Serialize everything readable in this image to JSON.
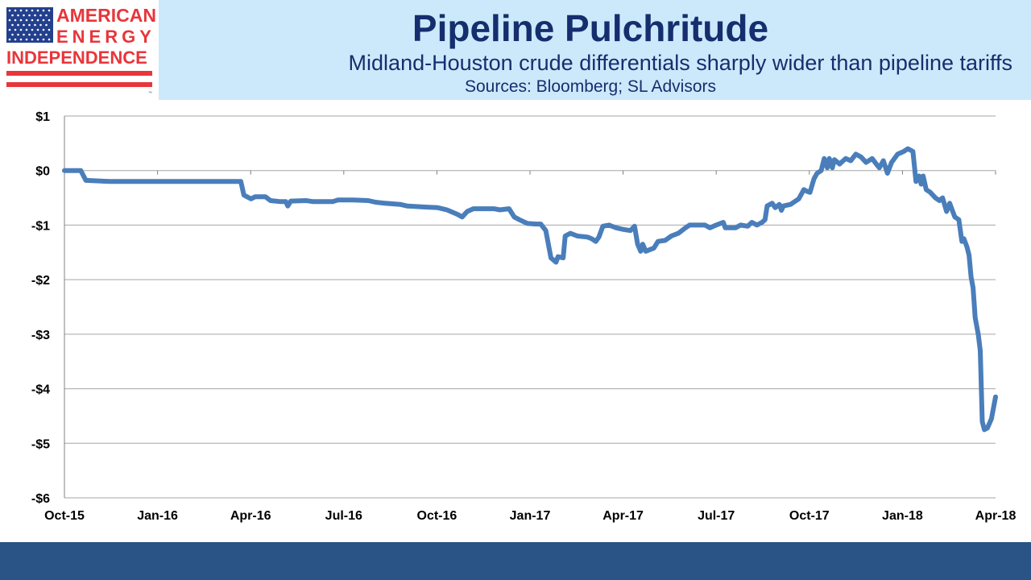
{
  "logo": {
    "line1": "AMERICAN",
    "line2": "ENERGY",
    "line3": "INDEPENDENCE",
    "icon": "us-flag-icon",
    "colors": {
      "red": "#e8363b",
      "blue": "#23408e"
    }
  },
  "header": {
    "title": "Pipeline Pulchritude",
    "subtitle": "Midland-Houston crude differentials sharply wider than pipeline tariffs",
    "sources": "Sources: Bloomberg; SL Advisors",
    "background": "#cce9fb",
    "text_color": "#152e6e"
  },
  "footer": {
    "color": "#2a5386"
  },
  "chart_data": {
    "type": "line",
    "title": "",
    "xlabel": "",
    "ylabel": "",
    "ylim": [
      -6,
      1
    ],
    "y_ticks": [
      1,
      0,
      -1,
      -2,
      -3,
      -4,
      -5,
      -6
    ],
    "y_tick_labels": [
      "$1",
      "$0",
      "-$1",
      "-$2",
      "-$3",
      "-$4",
      "-$5",
      "-$6"
    ],
    "x_tick_labels": [
      "Oct-15",
      "Jan-16",
      "Apr-16",
      "Jul-16",
      "Oct-16",
      "Jan-17",
      "Apr-17",
      "Jul-17",
      "Oct-17",
      "Jan-18",
      "Apr-18"
    ],
    "x_range": [
      "2015-10-01",
      "2018-04-01"
    ],
    "grid": true,
    "line_color": "#4a7ebb",
    "series": [
      {
        "name": "",
        "points": [
          [
            "2015-10-01",
            0.0
          ],
          [
            "2015-10-17",
            0.0
          ],
          [
            "2015-10-22",
            -0.18
          ],
          [
            "2015-11-15",
            -0.2
          ],
          [
            "2016-01-01",
            -0.2
          ],
          [
            "2016-02-15",
            -0.2
          ],
          [
            "2016-03-15",
            -0.2
          ],
          [
            "2016-03-22",
            -0.2
          ],
          [
            "2016-03-25",
            -0.45
          ],
          [
            "2016-04-01",
            -0.52
          ],
          [
            "2016-04-05",
            -0.48
          ],
          [
            "2016-04-15",
            -0.48
          ],
          [
            "2016-04-20",
            -0.55
          ],
          [
            "2016-04-30",
            -0.57
          ],
          [
            "2016-05-05",
            -0.57
          ],
          [
            "2016-05-07",
            -0.65
          ],
          [
            "2016-05-10",
            -0.56
          ],
          [
            "2016-05-25",
            -0.55
          ],
          [
            "2016-06-01",
            -0.57
          ],
          [
            "2016-06-20",
            -0.57
          ],
          [
            "2016-06-25",
            -0.54
          ],
          [
            "2016-07-10",
            -0.54
          ],
          [
            "2016-07-25",
            -0.55
          ],
          [
            "2016-08-01",
            -0.58
          ],
          [
            "2016-08-10",
            -0.6
          ],
          [
            "2016-08-25",
            -0.62
          ],
          [
            "2016-09-01",
            -0.65
          ],
          [
            "2016-09-20",
            -0.67
          ],
          [
            "2016-10-01",
            -0.68
          ],
          [
            "2016-10-10",
            -0.72
          ],
          [
            "2016-10-20",
            -0.8
          ],
          [
            "2016-10-25",
            -0.85
          ],
          [
            "2016-10-30",
            -0.75
          ],
          [
            "2016-11-05",
            -0.7
          ],
          [
            "2016-11-25",
            -0.7
          ],
          [
            "2016-12-01",
            -0.72
          ],
          [
            "2016-12-10",
            -0.7
          ],
          [
            "2016-12-15",
            -0.85
          ],
          [
            "2016-12-20",
            -0.9
          ],
          [
            "2016-12-28",
            -0.97
          ],
          [
            "2017-01-05",
            -0.98
          ],
          [
            "2017-01-10",
            -0.98
          ],
          [
            "2017-01-15",
            -1.1
          ],
          [
            "2017-01-20",
            -1.6
          ],
          [
            "2017-01-25",
            -1.68
          ],
          [
            "2017-01-27",
            -1.58
          ],
          [
            "2017-02-01",
            -1.6
          ],
          [
            "2017-02-03",
            -1.2
          ],
          [
            "2017-02-08",
            -1.15
          ],
          [
            "2017-02-15",
            -1.2
          ],
          [
            "2017-02-25",
            -1.22
          ],
          [
            "2017-03-01",
            -1.25
          ],
          [
            "2017-03-05",
            -1.3
          ],
          [
            "2017-03-08",
            -1.22
          ],
          [
            "2017-03-12",
            -1.02
          ],
          [
            "2017-03-18",
            -1.0
          ],
          [
            "2017-03-25",
            -1.05
          ],
          [
            "2017-04-01",
            -1.08
          ],
          [
            "2017-04-08",
            -1.1
          ],
          [
            "2017-04-12",
            -1.02
          ],
          [
            "2017-04-15",
            -1.35
          ],
          [
            "2017-04-18",
            -1.48
          ],
          [
            "2017-04-20",
            -1.35
          ],
          [
            "2017-04-23",
            -1.48
          ],
          [
            "2017-05-01",
            -1.42
          ],
          [
            "2017-05-05",
            -1.3
          ],
          [
            "2017-05-12",
            -1.28
          ],
          [
            "2017-05-18",
            -1.2
          ],
          [
            "2017-05-25",
            -1.15
          ],
          [
            "2017-06-01",
            -1.05
          ],
          [
            "2017-06-05",
            -1.0
          ],
          [
            "2017-06-20",
            -1.0
          ],
          [
            "2017-06-25",
            -1.05
          ],
          [
            "2017-07-01",
            -1.0
          ],
          [
            "2017-07-08",
            -0.95
          ],
          [
            "2017-07-10",
            -1.05
          ],
          [
            "2017-07-20",
            -1.05
          ],
          [
            "2017-07-25",
            -1.0
          ],
          [
            "2017-08-01",
            -1.02
          ],
          [
            "2017-08-05",
            -0.95
          ],
          [
            "2017-08-10",
            -1.0
          ],
          [
            "2017-08-15",
            -0.95
          ],
          [
            "2017-08-18",
            -0.9
          ],
          [
            "2017-08-20",
            -0.65
          ],
          [
            "2017-08-25",
            -0.6
          ],
          [
            "2017-08-28",
            -0.68
          ],
          [
            "2017-09-01",
            -0.62
          ],
          [
            "2017-09-03",
            -0.73
          ],
          [
            "2017-09-05",
            -0.65
          ],
          [
            "2017-09-12",
            -0.62
          ],
          [
            "2017-09-20",
            -0.52
          ],
          [
            "2017-09-25",
            -0.35
          ],
          [
            "2017-09-28",
            -0.38
          ],
          [
            "2017-10-01",
            -0.4
          ],
          [
            "2017-10-05",
            -0.15
          ],
          [
            "2017-10-08",
            -0.05
          ],
          [
            "2017-10-12",
            0.0
          ],
          [
            "2017-10-15",
            0.22
          ],
          [
            "2017-10-18",
            0.05
          ],
          [
            "2017-10-20",
            0.22
          ],
          [
            "2017-10-23",
            0.05
          ],
          [
            "2017-10-25",
            0.2
          ],
          [
            "2017-10-30",
            0.12
          ],
          [
            "2017-11-05",
            0.22
          ],
          [
            "2017-11-10",
            0.18
          ],
          [
            "2017-11-15",
            0.3
          ],
          [
            "2017-11-20",
            0.25
          ],
          [
            "2017-11-25",
            0.15
          ],
          [
            "2017-12-01",
            0.22
          ],
          [
            "2017-12-05",
            0.12
          ],
          [
            "2017-12-08",
            0.05
          ],
          [
            "2017-12-12",
            0.18
          ],
          [
            "2017-12-16",
            -0.05
          ],
          [
            "2017-12-20",
            0.15
          ],
          [
            "2017-12-26",
            0.3
          ],
          [
            "2018-01-01",
            0.35
          ],
          [
            "2018-01-05",
            0.4
          ],
          [
            "2018-01-10",
            0.35
          ],
          [
            "2018-01-13",
            -0.2
          ],
          [
            "2018-01-16",
            -0.1
          ],
          [
            "2018-01-18",
            -0.25
          ],
          [
            "2018-01-20",
            -0.1
          ],
          [
            "2018-01-23",
            -0.35
          ],
          [
            "2018-01-27",
            -0.4
          ],
          [
            "2018-02-01",
            -0.5
          ],
          [
            "2018-02-05",
            -0.55
          ],
          [
            "2018-02-08",
            -0.5
          ],
          [
            "2018-02-12",
            -0.75
          ],
          [
            "2018-02-15",
            -0.6
          ],
          [
            "2018-02-20",
            -0.85
          ],
          [
            "2018-02-24",
            -0.9
          ],
          [
            "2018-02-27",
            -1.3
          ],
          [
            "2018-03-01",
            -1.25
          ],
          [
            "2018-03-04",
            -1.4
          ],
          [
            "2018-03-06",
            -1.55
          ],
          [
            "2018-03-08",
            -1.95
          ],
          [
            "2018-03-10",
            -2.15
          ],
          [
            "2018-03-12",
            -2.7
          ],
          [
            "2018-03-15",
            -3.0
          ],
          [
            "2018-03-17",
            -3.3
          ],
          [
            "2018-03-19",
            -4.6
          ],
          [
            "2018-03-21",
            -4.75
          ],
          [
            "2018-03-24",
            -4.72
          ],
          [
            "2018-03-28",
            -4.55
          ],
          [
            "2018-04-01",
            -4.15
          ]
        ]
      }
    ]
  }
}
